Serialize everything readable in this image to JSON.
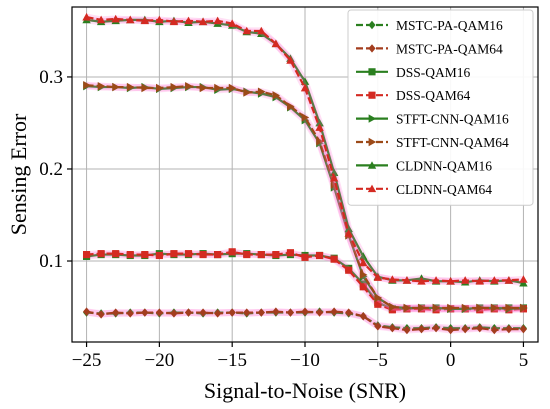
{
  "chart_data": {
    "type": "line",
    "title": "",
    "xlabel": "Signal-to-Noise (SNR)",
    "ylabel": "Sensing Error",
    "xlim": [
      -26,
      6
    ],
    "ylim": [
      0.012,
      0.376
    ],
    "x_ticks": [
      -25,
      -20,
      -15,
      -10,
      -5,
      0,
      5
    ],
    "y_ticks": [
      0.1,
      0.2,
      0.3
    ],
    "x_tick_labels": [
      "−25",
      "−20",
      "−15",
      "−10",
      "−5",
      "0",
      "5"
    ],
    "y_tick_labels": [
      "0.1",
      "0.2",
      "0.3"
    ],
    "grid": true,
    "legend_position": "top-right",
    "x": [
      -25,
      -24,
      -23,
      -22,
      -21,
      -20,
      -19,
      -18,
      -17,
      -16,
      -15,
      -14,
      -13,
      -12,
      -11,
      -10,
      -9,
      -8,
      -7,
      -6,
      -5,
      -4,
      -3,
      -2,
      -1,
      0,
      1,
      2,
      3,
      4,
      5
    ],
    "series": [
      {
        "name": "MSTC-PA-QAM16",
        "color": "#2a7f1f",
        "dash": true,
        "marker": "diamond",
        "values": [
          0.044,
          0.043,
          0.043,
          0.044,
          0.044,
          0.043,
          0.044,
          0.044,
          0.043,
          0.044,
          0.044,
          0.043,
          0.044,
          0.044,
          0.044,
          0.044,
          0.045,
          0.044,
          0.043,
          0.04,
          0.03,
          0.028,
          0.027,
          0.027,
          0.028,
          0.027,
          0.027,
          0.028,
          0.027,
          0.027,
          0.027
        ]
      },
      {
        "name": "MSTC-PA-QAM64",
        "color": "#a33d1e",
        "dash": true,
        "marker": "diamond",
        "values": [
          0.045,
          0.042,
          0.044,
          0.043,
          0.044,
          0.044,
          0.043,
          0.044,
          0.044,
          0.043,
          0.044,
          0.044,
          0.044,
          0.045,
          0.044,
          0.045,
          0.044,
          0.045,
          0.044,
          0.04,
          0.029,
          0.027,
          0.025,
          0.026,
          0.027,
          0.025,
          0.026,
          0.027,
          0.025,
          0.026,
          0.026
        ]
      },
      {
        "name": "DSS-QAM16",
        "color": "#2a7f1f",
        "dash": false,
        "marker": "square",
        "values": [
          0.105,
          0.107,
          0.107,
          0.106,
          0.106,
          0.108,
          0.107,
          0.107,
          0.108,
          0.107,
          0.108,
          0.108,
          0.107,
          0.106,
          0.107,
          0.106,
          0.106,
          0.103,
          0.092,
          0.075,
          0.055,
          0.048,
          0.048,
          0.049,
          0.049,
          0.048,
          0.048,
          0.049,
          0.049,
          0.049,
          0.049
        ]
      },
      {
        "name": "DSS-QAM64",
        "color": "#d42a22",
        "dash": true,
        "marker": "square",
        "values": [
          0.107,
          0.108,
          0.108,
          0.107,
          0.107,
          0.106,
          0.108,
          0.108,
          0.107,
          0.107,
          0.11,
          0.107,
          0.107,
          0.107,
          0.109,
          0.104,
          0.106,
          0.102,
          0.09,
          0.072,
          0.053,
          0.047,
          0.048,
          0.048,
          0.047,
          0.048,
          0.048,
          0.047,
          0.048,
          0.047,
          0.048
        ]
      },
      {
        "name": "STFT-CNN-QAM16",
        "color": "#2a7f1f",
        "dash": false,
        "marker": "triangle-right",
        "values": [
          0.29,
          0.289,
          0.289,
          0.288,
          0.289,
          0.287,
          0.288,
          0.289,
          0.289,
          0.286,
          0.287,
          0.284,
          0.282,
          0.278,
          0.267,
          0.253,
          0.228,
          0.18,
          0.128,
          0.083,
          0.06,
          0.05,
          0.049,
          0.049,
          0.049,
          0.048,
          0.048,
          0.049,
          0.049,
          0.048,
          0.049
        ]
      },
      {
        "name": "STFT-CNN-QAM64",
        "color": "#9c4a18",
        "dash": true,
        "marker": "triangle-right",
        "values": [
          0.291,
          0.29,
          0.289,
          0.289,
          0.288,
          0.288,
          0.289,
          0.29,
          0.288,
          0.288,
          0.288,
          0.283,
          0.284,
          0.28,
          0.268,
          0.256,
          0.23,
          0.183,
          0.128,
          0.085,
          0.06,
          0.05,
          0.049,
          0.049,
          0.049,
          0.049,
          0.049,
          0.049,
          0.049,
          0.049,
          0.049
        ]
      },
      {
        "name": "CLDNN-QAM16",
        "color": "#2a7f1f",
        "dash": false,
        "marker": "triangle-up",
        "values": [
          0.362,
          0.36,
          0.361,
          0.362,
          0.362,
          0.36,
          0.361,
          0.359,
          0.36,
          0.358,
          0.356,
          0.349,
          0.347,
          0.336,
          0.32,
          0.295,
          0.25,
          0.196,
          0.135,
          0.105,
          0.083,
          0.079,
          0.079,
          0.081,
          0.078,
          0.078,
          0.077,
          0.079,
          0.078,
          0.079,
          0.076
        ]
      },
      {
        "name": "CLDNN-QAM64",
        "color": "#d42a22",
        "dash": true,
        "marker": "triangle-up",
        "values": [
          0.365,
          0.362,
          0.363,
          0.362,
          0.361,
          0.362,
          0.36,
          0.361,
          0.36,
          0.361,
          0.358,
          0.35,
          0.35,
          0.336,
          0.318,
          0.288,
          0.245,
          0.19,
          0.13,
          0.098,
          0.082,
          0.08,
          0.079,
          0.078,
          0.079,
          0.078,
          0.079,
          0.078,
          0.079,
          0.079,
          0.08
        ]
      }
    ]
  }
}
